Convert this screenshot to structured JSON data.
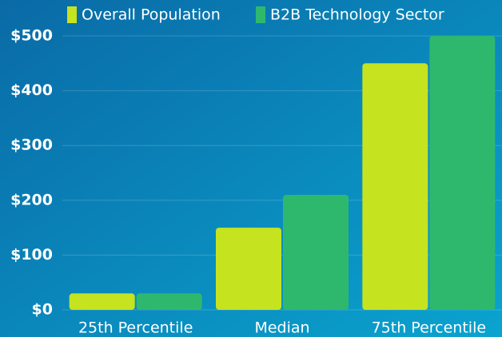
{
  "chart_data": {
    "type": "bar",
    "categories": [
      "25th Percentile",
      "Median",
      "75th Percentile"
    ],
    "series": [
      {
        "name": "Overall Population",
        "color": "#c5e31f",
        "values": [
          30,
          150,
          450
        ]
      },
      {
        "name": "B2B Technology Sector",
        "color": "#2eb86e",
        "values": [
          30,
          210,
          500
        ]
      }
    ],
    "ylim": [
      0,
      500
    ],
    "yticks": [
      {
        "value": 0,
        "label": "$0"
      },
      {
        "value": 100,
        "label": "$100"
      },
      {
        "value": 200,
        "label": "$200"
      },
      {
        "value": 300,
        "label": "$300"
      },
      {
        "value": 400,
        "label": "$400"
      },
      {
        "value": 500,
        "label": "$500"
      }
    ],
    "grid": true
  }
}
